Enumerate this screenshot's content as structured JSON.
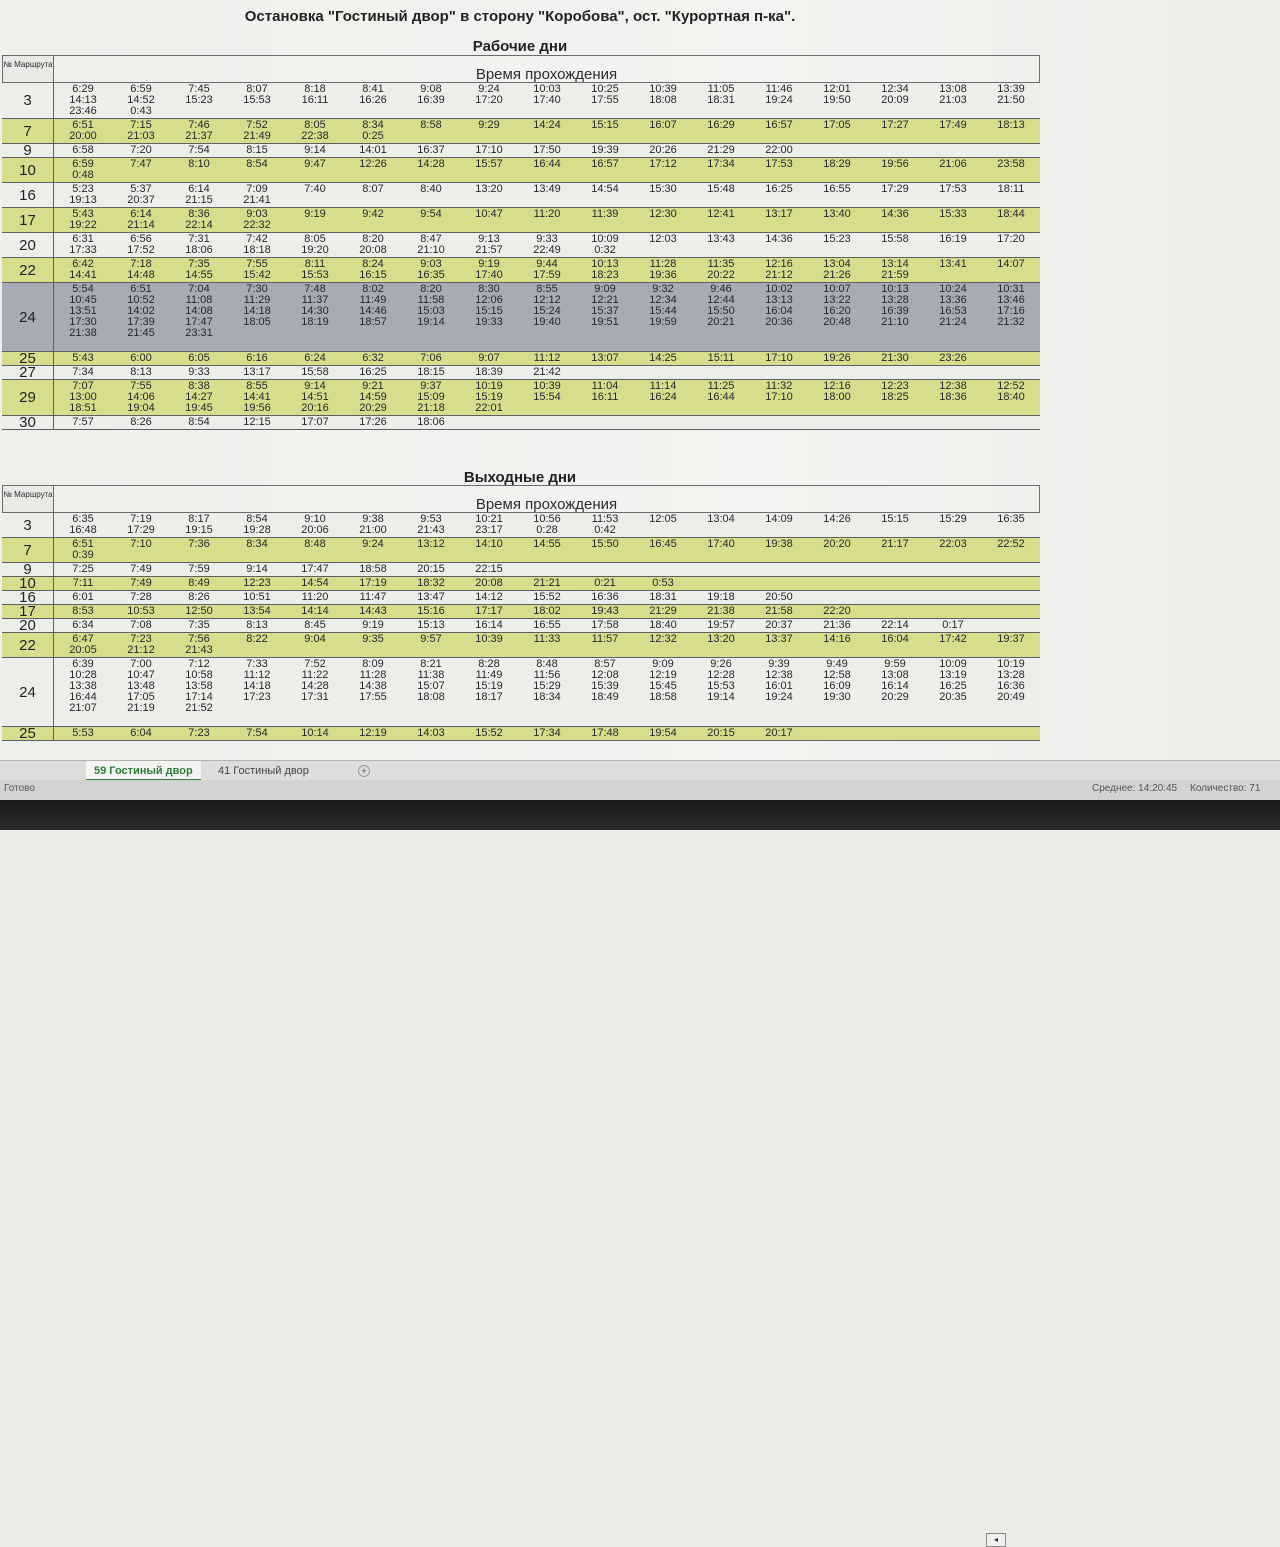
{
  "title": "Остановка \"Гостиный двор\" в сторону \"Коробова\", ост. \"Курортная п-ка\".",
  "sections": [
    {
      "title": "Рабочие дни",
      "num_header": "№ Маршрута",
      "time_header": "Время прохождения",
      "rows": [
        {
          "route": "3",
          "color": "white",
          "lines": 3,
          "times": [
            "6:29",
            "6:59",
            "7:45",
            "8:07",
            "8:18",
            "8:41",
            "9:08",
            "9:24",
            "10:03",
            "10:25",
            "10:39",
            "11:05",
            "11:46",
            "12:01",
            "12:34",
            "13:08",
            "13:39",
            "14:13",
            "14:52",
            "15:23",
            "15:53",
            "16:11",
            "16:26",
            "16:39",
            "17:20",
            "17:40",
            "17:55",
            "18:08",
            "18:31",
            "19:24",
            "19:50",
            "20:09",
            "21:03",
            "21:50",
            "23:46",
            "0:43"
          ]
        },
        {
          "route": "7",
          "color": "yellow",
          "lines": 2,
          "times": [
            "6:51",
            "7:15",
            "7:46",
            "7:52",
            "8:05",
            "8:34",
            "8:58",
            "9:29",
            "14:24",
            "15:15",
            "16:07",
            "16:29",
            "16:57",
            "17:05",
            "17:27",
            "17:49",
            "18:13",
            "20:00",
            "21:03",
            "21:37",
            "21:49",
            "22:38",
            "0:25"
          ]
        },
        {
          "route": "9",
          "color": "white",
          "lines": 1,
          "times": [
            "6:58",
            "7:20",
            "7:54",
            "8:15",
            "9:14",
            "14:01",
            "16:37",
            "17:10",
            "17:50",
            "19:39",
            "20:26",
            "21:29",
            "22:00"
          ]
        },
        {
          "route": "10",
          "color": "yellow",
          "lines": 2,
          "times": [
            "6:59",
            "7:47",
            "8:10",
            "8:54",
            "9:47",
            "12:26",
            "14:28",
            "15:57",
            "16:44",
            "16:57",
            "17:12",
            "17:34",
            "17:53",
            "18:29",
            "19:56",
            "21:06",
            "23:58",
            "0:48"
          ]
        },
        {
          "route": "16",
          "color": "white",
          "lines": 2,
          "times": [
            "5:23",
            "5:37",
            "6:14",
            "7:09",
            "7:40",
            "8:07",
            "8:40",
            "13:20",
            "13:49",
            "14:54",
            "15:30",
            "15:48",
            "16:25",
            "16:55",
            "17:29",
            "17:53",
            "18:11",
            "19:13",
            "20:37",
            "21:15",
            "21:41"
          ]
        },
        {
          "route": "17",
          "color": "yellow",
          "lines": 2,
          "times": [
            "5:43",
            "6:14",
            "8:36",
            "9:03",
            "9:19",
            "9:42",
            "9:54",
            "10:47",
            "11:20",
            "11:39",
            "12:30",
            "12:41",
            "13:17",
            "13:40",
            "14:36",
            "15:33",
            "18:44",
            "19:22",
            "21:14",
            "22:14",
            "22:32"
          ]
        },
        {
          "route": "20",
          "color": "white",
          "lines": 2,
          "times": [
            "6:31",
            "6:56",
            "7:31",
            "7:42",
            "8:05",
            "8:20",
            "8:47",
            "9:13",
            "9:33",
            "10:09",
            "12:03",
            "13:43",
            "14:36",
            "15:23",
            "15:58",
            "16:19",
            "17:20",
            "17:33",
            "17:52",
            "18:06",
            "18:18",
            "19:20",
            "20:08",
            "21:10",
            "21:57",
            "22:49",
            "0:32"
          ]
        },
        {
          "route": "22",
          "color": "yellow",
          "lines": 2,
          "times": [
            "6:42",
            "7:18",
            "7:35",
            "7:55",
            "8:11",
            "8:24",
            "9:03",
            "9:19",
            "9:44",
            "10:13",
            "11:28",
            "11:35",
            "12:16",
            "13:04",
            "13:14",
            "13:41",
            "14:07",
            "14:41",
            "14:48",
            "14:55",
            "15:42",
            "15:53",
            "16:15",
            "16:35",
            "17:40",
            "17:59",
            "18:23",
            "19:36",
            "20:22",
            "21:12",
            "21:26",
            "21:59"
          ]
        },
        {
          "route": "24",
          "color": "hl",
          "lines": 6,
          "times": [
            "5:54",
            "6:51",
            "7:04",
            "7:30",
            "7:48",
            "8:02",
            "8:20",
            "8:30",
            "8:55",
            "9:09",
            "9:32",
            "9:46",
            "10:02",
            "10:07",
            "10:13",
            "10:24",
            "10:31",
            "10:45",
            "10:52",
            "11:08",
            "11:29",
            "11:37",
            "11:49",
            "11:58",
            "12:06",
            "12:12",
            "12:21",
            "12:34",
            "12:44",
            "13:13",
            "13:22",
            "13:28",
            "13:36",
            "13:46",
            "13:51",
            "14:02",
            "14:08",
            "14:18",
            "14:30",
            "14:46",
            "15:03",
            "15:15",
            "15:24",
            "15:37",
            "15:44",
            "15:50",
            "16:04",
            "16:20",
            "16:39",
            "16:53",
            "17:16",
            "17:30",
            "17:39",
            "17:47",
            "18:05",
            "18:19",
            "18:57",
            "19:14",
            "19:33",
            "19:40",
            "19:51",
            "19:59",
            "20:21",
            "20:36",
            "20:48",
            "21:10",
            "21:24",
            "21:32",
            "21:38",
            "21:45",
            "23:31"
          ]
        },
        {
          "route": "25",
          "color": "yellow",
          "lines": 1,
          "times": [
            "5:43",
            "6:00",
            "6:05",
            "6:16",
            "6:24",
            "6:32",
            "7:06",
            "9:07",
            "11:12",
            "13:07",
            "14:25",
            "15:11",
            "17:10",
            "19:26",
            "21:30",
            "23:26"
          ]
        },
        {
          "route": "27",
          "color": "white",
          "lines": 1,
          "times": [
            "7:34",
            "8:13",
            "9:33",
            "13:17",
            "15:58",
            "16:25",
            "18:15",
            "18:39",
            "21:42"
          ]
        },
        {
          "route": "29",
          "color": "yellow",
          "lines": 3,
          "times": [
            "7:07",
            "7:55",
            "8:38",
            "8:55",
            "9:14",
            "9:21",
            "9:37",
            "10:19",
            "10:39",
            "11:04",
            "11:14",
            "11:25",
            "11:32",
            "12:16",
            "12:23",
            "12:38",
            "12:52",
            "13:00",
            "14:06",
            "14:27",
            "14:41",
            "14:51",
            "14:59",
            "15:09",
            "15:19",
            "15:54",
            "16:11",
            "16:24",
            "16:44",
            "17:10",
            "18:00",
            "18:25",
            "18:36",
            "18:40",
            "18:51",
            "19:04",
            "19:45",
            "19:56",
            "20:16",
            "20:29",
            "21:18",
            "22:01"
          ]
        },
        {
          "route": "30",
          "color": "white",
          "lines": 1,
          "times": [
            "7:57",
            "8:26",
            "8:54",
            "12:15",
            "17:07",
            "17:26",
            "18:06"
          ]
        }
      ]
    },
    {
      "title": "Выходные дни",
      "num_header": "№ Маршрута",
      "time_header": "Время прохождения",
      "rows": [
        {
          "route": "3",
          "color": "white",
          "lines": 2,
          "times": [
            "6:35",
            "7:19",
            "8:17",
            "8:54",
            "9:10",
            "9:38",
            "9:53",
            "10:21",
            "10:56",
            "11:53",
            "12:05",
            "13:04",
            "14:09",
            "14:26",
            "15:15",
            "15:29",
            "16:35",
            "16:48",
            "17:29",
            "19:15",
            "19:28",
            "20:06",
            "21:00",
            "21:43",
            "23:17",
            "0:28",
            "0:42"
          ]
        },
        {
          "route": "7",
          "color": "yellow",
          "lines": 2,
          "times": [
            "6:51",
            "7:10",
            "7:36",
            "8:34",
            "8:48",
            "9:24",
            "13:12",
            "14:10",
            "14:55",
            "15:50",
            "16:45",
            "17:40",
            "19:38",
            "20:20",
            "21:17",
            "22:03",
            "22:52",
            "0:39"
          ]
        },
        {
          "route": "9",
          "color": "white",
          "lines": 1,
          "times": [
            "7:25",
            "7:49",
            "7:59",
            "9:14",
            "17:47",
            "18:58",
            "20:15",
            "22:15"
          ]
        },
        {
          "route": "10",
          "color": "yellow",
          "lines": 1,
          "times": [
            "7:11",
            "7:49",
            "8:49",
            "12:23",
            "14:54",
            "17:19",
            "18:32",
            "20:08",
            "21:21",
            "0:21",
            "0:53"
          ]
        },
        {
          "route": "16",
          "color": "white",
          "lines": 1,
          "times": [
            "6:01",
            "7:28",
            "8:26",
            "10:51",
            "11:20",
            "11:47",
            "13:47",
            "14:12",
            "15:52",
            "16:36",
            "18:31",
            "19:18",
            "20:50"
          ]
        },
        {
          "route": "17",
          "color": "yellow",
          "lines": 1,
          "times": [
            "8:53",
            "10:53",
            "12:50",
            "13:54",
            "14:14",
            "14:43",
            "15:16",
            "17:17",
            "18:02",
            "19:43",
            "21:29",
            "21:38",
            "21:58",
            "22:20"
          ]
        },
        {
          "route": "20",
          "color": "white",
          "lines": 1,
          "times": [
            "6:34",
            "7:08",
            "7:35",
            "8:13",
            "8:45",
            "9:19",
            "15:13",
            "16:14",
            "16:55",
            "17:58",
            "18:40",
            "19:57",
            "20:37",
            "21:36",
            "22:14",
            "0:17"
          ]
        },
        {
          "route": "22",
          "color": "yellow",
          "lines": 2,
          "times": [
            "6:47",
            "7:23",
            "7:56",
            "8:22",
            "9:04",
            "9:35",
            "9:57",
            "10:39",
            "11:33",
            "11:57",
            "12:32",
            "13:20",
            "13:37",
            "14:16",
            "16:04",
            "17:42",
            "19:37",
            "20:05",
            "21:12",
            "21:43"
          ]
        },
        {
          "route": "24",
          "color": "white",
          "lines": 6,
          "times": [
            "6:39",
            "7:00",
            "7:12",
            "7:33",
            "7:52",
            "8:09",
            "8:21",
            "8:28",
            "8:48",
            "8:57",
            "9:09",
            "9:26",
            "9:39",
            "9:49",
            "9:59",
            "10:09",
            "10:19",
            "10:28",
            "10:47",
            "10:58",
            "11:12",
            "11:22",
            "11:28",
            "11:38",
            "11:49",
            "11:56",
            "12:08",
            "12:19",
            "12:28",
            "12:38",
            "12:58",
            "13:08",
            "13:19",
            "13:28",
            "13:38",
            "13:48",
            "13:58",
            "14:18",
            "14:28",
            "14:38",
            "15:07",
            "15:19",
            "15:29",
            "15:39",
            "15:45",
            "15:53",
            "16:01",
            "16:09",
            "16:14",
            "16:25",
            "16:36",
            "16:44",
            "17:05",
            "17:14",
            "17:23",
            "17:31",
            "17:55",
            "18:08",
            "18:17",
            "18:34",
            "18:49",
            "18:58",
            "19:14",
            "19:24",
            "19:30",
            "20:29",
            "20:35",
            "20:49",
            "21:07",
            "21:19",
            "21:52"
          ]
        },
        {
          "route": "25",
          "color": "yellow",
          "lines": 1,
          "times": [
            "5:53",
            "6:04",
            "7:23",
            "7:54",
            "10:14",
            "12:19",
            "14:03",
            "15:52",
            "17:34",
            "17:48",
            "19:54",
            "20:15",
            "20:17"
          ]
        }
      ]
    }
  ],
  "tabs": [
    "59 Гостиный двор",
    "41 Гостиный двор"
  ],
  "tab_add": "+",
  "scroll_left": "◂",
  "status": {
    "ready": "Готово",
    "average": "Среднее: 14:20:45",
    "count": "Количество: 71"
  }
}
